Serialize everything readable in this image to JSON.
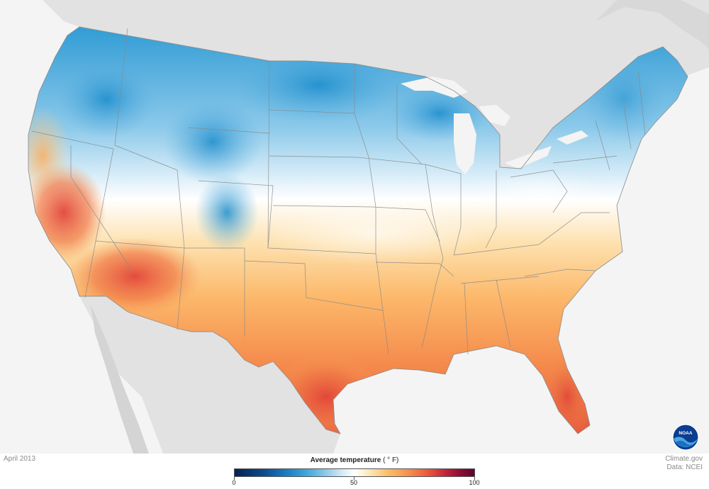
{
  "map": {
    "region": "Contiguous United States",
    "variable": "Average temperature",
    "period": "April 2013",
    "colors": {
      "background": "#f4f4f4",
      "land_outside": "#e2e2e2",
      "cold": "#1a7fc4",
      "cool": "#8cc9ea",
      "neutral": "#ffffff",
      "warm": "#fcc36e",
      "hot": "#e9553a",
      "border": "#888888"
    }
  },
  "footer": {
    "date": "April 2013",
    "credit_source": "Climate.gov",
    "credit_data": "Data: NCEI"
  },
  "legend": {
    "title": "Average temperature",
    "unit": "( ° F)",
    "min": 0,
    "max": 100,
    "ticks": [
      "0",
      "50",
      "100"
    ]
  },
  "logo": {
    "text": "NOAA",
    "icon": "noaa-logo-icon"
  }
}
